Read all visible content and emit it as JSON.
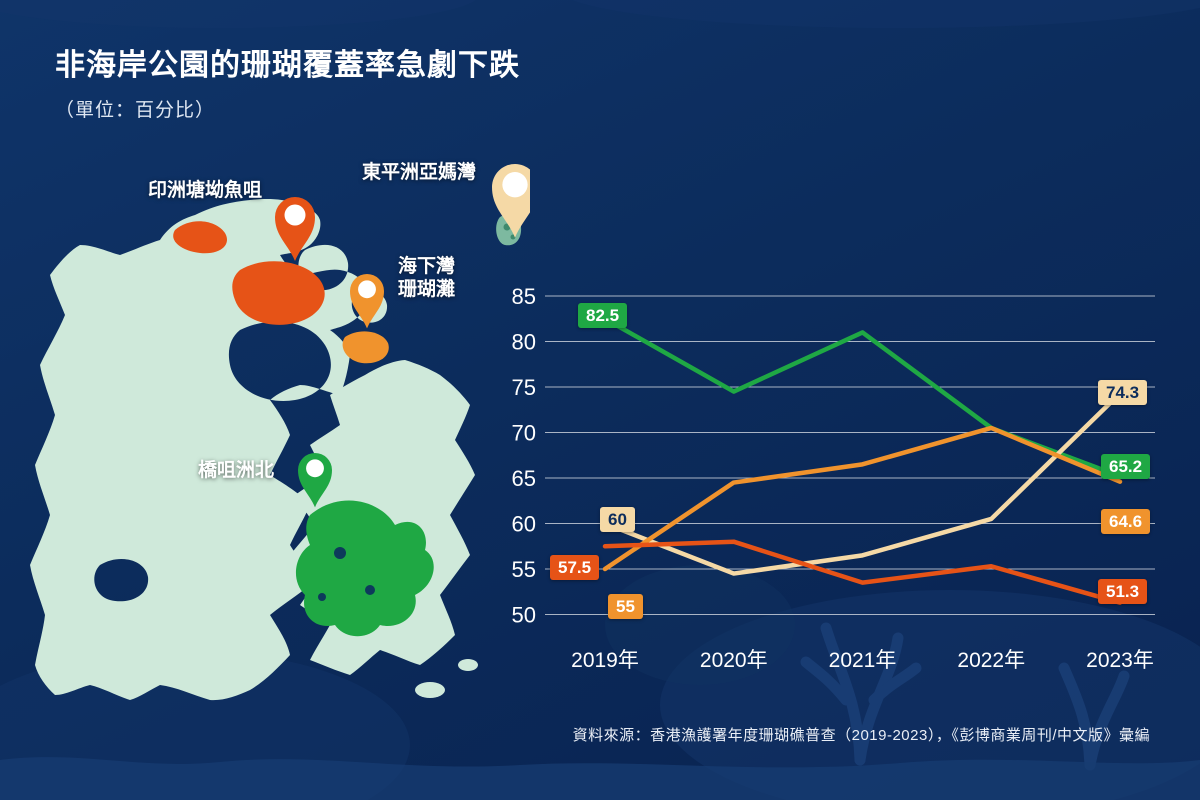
{
  "title": "非海岸公園的珊瑚覆蓋率急劇下跌",
  "subtitle": "（單位：百分比）",
  "source": "資料來源：香港漁護署年度珊瑚礁普查（2019-2023），《彭博商業周刊/中文版》彙編",
  "colors": {
    "background": "#0c2c5c",
    "land": "#cfe9da",
    "island_teal": "#7db9a0",
    "green": "#1fa844",
    "cream": "#f5d9a6",
    "orange": "#f0932d",
    "red": "#e65317"
  },
  "map": {
    "locations": [
      {
        "name": "印洲塘坳魚咀",
        "pin_color": "#e65317"
      },
      {
        "name": "東平洲亞媽灣",
        "pin_color": "#f5d9a6"
      },
      {
        "name": "海下灣珊瑚灘",
        "label_line1": "海下灣",
        "label_line2": "珊瑚灘",
        "pin_color": "#f0932d"
      },
      {
        "name": "橋咀洲北",
        "pin_color": "#1fa844"
      }
    ]
  },
  "chart_data": {
    "type": "line",
    "categories": [
      "2019年",
      "2020年",
      "2021年",
      "2022年",
      "2023年"
    ],
    "ylim": [
      50,
      85
    ],
    "yticks": [
      85,
      80,
      75,
      70,
      65,
      60,
      55,
      50
    ],
    "grid": true,
    "legend": "none (series identified by map pins)",
    "series": [
      {
        "name": "橋咀洲北",
        "color": "#1fa844",
        "label_text_color": "#ffffff",
        "values": [
          82.5,
          74.5,
          81,
          70.5,
          65.2
        ]
      },
      {
        "name": "東平洲亞媽灣",
        "color": "#f5d9a6",
        "label_text_color": "#0d2d5c",
        "values": [
          60,
          54.5,
          56.5,
          60.5,
          74.3
        ]
      },
      {
        "name": "海下灣珊瑚灘",
        "color": "#f0932d",
        "label_text_color": "#ffffff",
        "values": [
          55,
          64.5,
          66.5,
          70.5,
          64.6
        ]
      },
      {
        "name": "印洲塘坳魚咀",
        "color": "#e65317",
        "label_text_color": "#ffffff",
        "values": [
          57.5,
          58,
          53.5,
          55.3,
          51.3
        ]
      }
    ]
  }
}
